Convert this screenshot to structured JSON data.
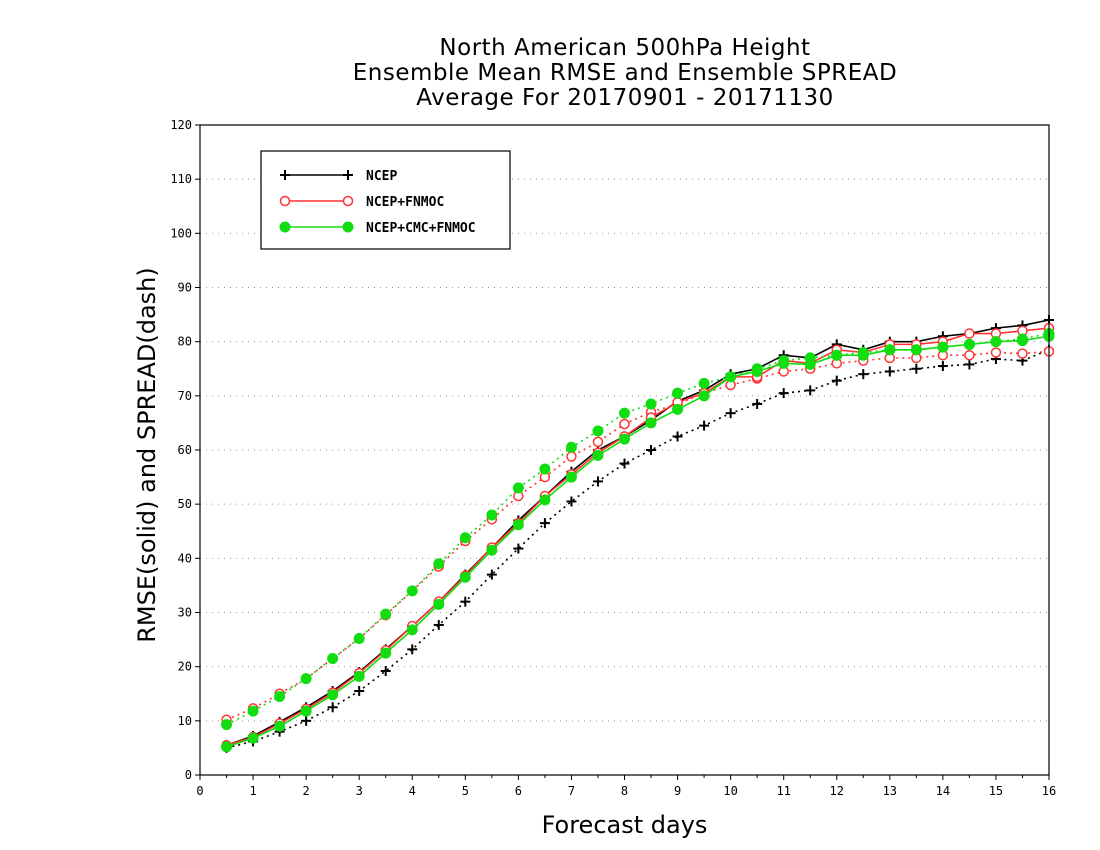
{
  "chart_data": {
    "type": "line",
    "title_lines": [
      "North American 500hPa Height",
      "Ensemble Mean RMSE and Ensemble SPREAD",
      "Average For 20170901 - 20171130"
    ],
    "xlabel": "Forecast days",
    "ylabel": "RMSE(solid) and SPREAD(dash)",
    "xlim": [
      0,
      16
    ],
    "ylim": [
      0,
      120
    ],
    "x_ticks": [
      0,
      1,
      2,
      3,
      4,
      5,
      6,
      7,
      8,
      9,
      10,
      11,
      12,
      13,
      14,
      15,
      16
    ],
    "y_ticks": [
      0,
      10,
      20,
      30,
      40,
      50,
      60,
      70,
      80,
      90,
      100,
      110,
      120
    ],
    "grid": true,
    "legend_position": "top-left",
    "x": [
      0.5,
      1,
      1.5,
      2,
      2.5,
      3,
      3.5,
      4,
      4.5,
      5,
      5.5,
      6,
      6.5,
      7,
      7.5,
      8,
      8.5,
      9,
      9.5,
      10,
      10.5,
      11,
      11.5,
      12,
      12.5,
      13,
      13.5,
      14,
      14.5,
      15,
      15.5,
      16
    ],
    "series": [
      {
        "name": "NCEP",
        "color": "#000000",
        "marker": "plus",
        "rmse": [
          5.5,
          7.2,
          9.8,
          12.5,
          15.5,
          19.0,
          23.2,
          27.5,
          32.0,
          37.0,
          42.0,
          47.0,
          51.5,
          56.0,
          60.0,
          62.5,
          65.5,
          69.0,
          71.0,
          74.0,
          75.0,
          77.5,
          77.0,
          79.5,
          78.5,
          80.0,
          80.0,
          81.0,
          81.5,
          82.5,
          83.0,
          84.0
        ],
        "spread": [
          5.0,
          6.2,
          8.0,
          10.0,
          12.5,
          15.5,
          19.2,
          23.2,
          27.7,
          32.0,
          37.0,
          41.8,
          46.5,
          50.5,
          54.2,
          57.5,
          60.0,
          62.5,
          64.5,
          66.8,
          68.5,
          70.5,
          71.0,
          72.8,
          74.0,
          74.5,
          75.0,
          75.5,
          75.8,
          76.8,
          76.5,
          78.5
        ]
      },
      {
        "name": "NCEP+FNMOC",
        "color": "#ff3333",
        "marker": "open-circle",
        "rmse": [
          5.5,
          7.0,
          9.5,
          12.2,
          15.2,
          18.8,
          23.0,
          27.5,
          32.0,
          36.8,
          42.0,
          46.5,
          51.5,
          55.5,
          59.5,
          62.5,
          66.0,
          68.8,
          70.5,
          73.5,
          73.5,
          76.5,
          76.0,
          78.5,
          78.0,
          79.5,
          79.5,
          80.0,
          81.5,
          81.5,
          82.0,
          82.5
        ],
        "spread": [
          10.2,
          12.3,
          15.0,
          17.8,
          21.5,
          25.2,
          29.5,
          34.0,
          38.5,
          43.2,
          47.2,
          51.5,
          55.0,
          58.8,
          61.5,
          64.8,
          67.0,
          68.5,
          70.5,
          72.0,
          73.2,
          74.5,
          75.0,
          76.0,
          76.5,
          77.0,
          77.0,
          77.5,
          77.5,
          78.0,
          77.8,
          78.2
        ]
      },
      {
        "name": "NCEP+CMC+FNMOC",
        "color": "#11dd11",
        "marker": "filled-circle",
        "rmse": [
          5.2,
          6.8,
          9.0,
          11.8,
          14.8,
          18.2,
          22.5,
          26.8,
          31.5,
          36.5,
          41.5,
          46.2,
          50.8,
          55.0,
          59.0,
          62.0,
          65.0,
          67.5,
          70.0,
          73.5,
          74.5,
          76.0,
          75.8,
          77.5,
          77.5,
          78.5,
          78.5,
          79.0,
          79.5,
          80.0,
          80.2,
          81.0
        ],
        "spread": [
          9.3,
          11.8,
          14.5,
          17.8,
          21.5,
          25.2,
          29.7,
          34.0,
          39.0,
          43.8,
          48.0,
          53.0,
          56.5,
          60.5,
          63.5,
          66.8,
          68.5,
          70.5,
          72.3,
          73.5,
          75.0,
          76.5,
          77.0,
          77.5,
          78.0,
          78.5,
          78.5,
          79.0,
          79.5,
          80.0,
          80.5,
          81.5
        ]
      }
    ]
  }
}
